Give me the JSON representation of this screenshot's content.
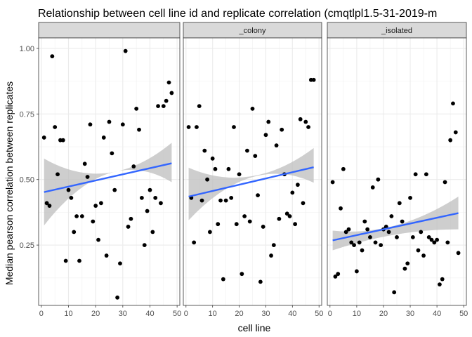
{
  "chart_data": {
    "type": "scatter",
    "title": "Relationship between cell line id and replicate correlation (cmqtlpl1.5-31-2019-m",
    "xlabel": "cell line",
    "ylabel": "Median pearson correlation between replicates",
    "xlim": [
      -1,
      51
    ],
    "ylim": [
      0.02,
      1.04
    ],
    "x_ticks": [
      0,
      10,
      20,
      30,
      40,
      50
    ],
    "y_ticks": [
      0.25,
      0.5,
      0.75,
      1.0
    ],
    "y_tick_labels": [
      "0.25",
      "0.50",
      "0.75",
      "1.00"
    ],
    "x_tick_labels": [
      "0",
      "10",
      "20",
      "30",
      "40",
      "50"
    ],
    "grid": true,
    "panel_background": "#ffffff",
    "strip_fill": "#d9d9d9",
    "point_color": "#000000",
    "fit_color": "#3366ff",
    "band_color": "#bdbdbd",
    "panels": [
      {
        "strip": "",
        "fit": [
          0.452,
          0.562
        ],
        "band_lower": [
          0.325,
          0.522,
          0.49
        ],
        "band_upper": [
          0.58,
          0.525,
          0.64
        ],
        "points": [
          [
            1,
            0.66
          ],
          [
            2,
            0.41
          ],
          [
            3,
            0.4
          ],
          [
            4,
            0.97
          ],
          [
            5,
            0.7
          ],
          [
            6,
            0.52
          ],
          [
            7,
            0.65
          ],
          [
            8,
            0.65
          ],
          [
            9,
            0.19
          ],
          [
            10,
            0.46
          ],
          [
            11,
            0.43
          ],
          [
            12,
            0.3
          ],
          [
            13,
            0.36
          ],
          [
            14,
            0.19
          ],
          [
            15,
            0.36
          ],
          [
            16,
            0.56
          ],
          [
            17,
            0.51
          ],
          [
            18,
            0.71
          ],
          [
            19,
            0.34
          ],
          [
            20,
            0.4
          ],
          [
            21,
            0.27
          ],
          [
            22,
            0.41
          ],
          [
            23,
            0.66
          ],
          [
            24,
            0.21
          ],
          [
            25,
            0.72
          ],
          [
            26,
            0.6
          ],
          [
            27,
            0.46
          ],
          [
            28,
            0.05
          ],
          [
            29,
            0.18
          ],
          [
            30,
            0.71
          ],
          [
            31,
            0.99
          ],
          [
            32,
            0.32
          ],
          [
            33,
            0.35
          ],
          [
            34,
            0.55
          ],
          [
            35,
            0.77
          ],
          [
            36,
            0.69
          ],
          [
            37,
            0.43
          ],
          [
            38,
            0.25
          ],
          [
            39,
            0.38
          ],
          [
            40,
            0.46
          ],
          [
            41,
            0.3
          ],
          [
            42,
            0.43
          ],
          [
            43,
            0.78
          ],
          [
            44,
            0.41
          ],
          [
            45,
            0.78
          ],
          [
            46,
            0.8
          ],
          [
            47,
            0.87
          ],
          [
            48,
            0.83
          ]
        ]
      },
      {
        "strip": "_colony",
        "fit": [
          0.435,
          0.547
        ],
        "band_lower": [
          0.345,
          0.508,
          0.488
        ],
        "band_upper": [
          0.545,
          0.512,
          0.62
        ],
        "points": [
          [
            1,
            0.7
          ],
          [
            2,
            0.43
          ],
          [
            3,
            0.26
          ],
          [
            4,
            0.7
          ],
          [
            5,
            0.78
          ],
          [
            6,
            0.42
          ],
          [
            7,
            0.61
          ],
          [
            8,
            0.5
          ],
          [
            9,
            0.3
          ],
          [
            10,
            0.58
          ],
          [
            11,
            0.54
          ],
          [
            12,
            0.33
          ],
          [
            13,
            0.42
          ],
          [
            14,
            0.12
          ],
          [
            15,
            0.42
          ],
          [
            16,
            0.54
          ],
          [
            17,
            0.43
          ],
          [
            18,
            0.7
          ],
          [
            19,
            0.33
          ],
          [
            20,
            0.52
          ],
          [
            21,
            0.14
          ],
          [
            22,
            0.36
          ],
          [
            23,
            0.61
          ],
          [
            24,
            0.34
          ],
          [
            25,
            0.77
          ],
          [
            26,
            0.59
          ],
          [
            27,
            0.44
          ],
          [
            28,
            0.11
          ],
          [
            29,
            0.32
          ],
          [
            30,
            0.67
          ],
          [
            31,
            0.72
          ],
          [
            32,
            0.21
          ],
          [
            33,
            0.25
          ],
          [
            34,
            0.63
          ],
          [
            35,
            0.35
          ],
          [
            36,
            0.69
          ],
          [
            37,
            0.52
          ],
          [
            38,
            0.37
          ],
          [
            39,
            0.36
          ],
          [
            40,
            0.45
          ],
          [
            41,
            0.33
          ],
          [
            42,
            0.48
          ],
          [
            43,
            0.73
          ],
          [
            44,
            0.41
          ],
          [
            45,
            0.72
          ],
          [
            46,
            0.7
          ],
          [
            47,
            0.88
          ],
          [
            48,
            0.88
          ]
        ]
      },
      {
        "strip": "_isolated",
        "fit": [
          0.268,
          0.372
        ],
        "band_lower": [
          0.23,
          0.29,
          0.31
        ],
        "band_upper": [
          0.305,
          0.325,
          0.435
        ],
        "points": [
          [
            1,
            0.49
          ],
          [
            2,
            0.13
          ],
          [
            3,
            0.14
          ],
          [
            4,
            0.39
          ],
          [
            5,
            0.54
          ],
          [
            6,
            0.3
          ],
          [
            7,
            0.31
          ],
          [
            8,
            0.26
          ],
          [
            9,
            0.25
          ],
          [
            10,
            0.15
          ],
          [
            11,
            0.26
          ],
          [
            12,
            0.23
          ],
          [
            13,
            0.34
          ],
          [
            14,
            0.31
          ],
          [
            15,
            0.28
          ],
          [
            16,
            0.47
          ],
          [
            17,
            0.26
          ],
          [
            18,
            0.5
          ],
          [
            19,
            0.25
          ],
          [
            20,
            0.31
          ],
          [
            21,
            0.32
          ],
          [
            22,
            0.3
          ],
          [
            23,
            0.36
          ],
          [
            24,
            0.07
          ],
          [
            25,
            0.28
          ],
          [
            26,
            0.41
          ],
          [
            27,
            0.34
          ],
          [
            28,
            0.16
          ],
          [
            29,
            0.18
          ],
          [
            30,
            0.43
          ],
          [
            31,
            0.28
          ],
          [
            32,
            0.52
          ],
          [
            33,
            0.23
          ],
          [
            34,
            0.3
          ],
          [
            35,
            0.21
          ],
          [
            36,
            0.52
          ],
          [
            37,
            0.28
          ],
          [
            38,
            0.27
          ],
          [
            39,
            0.26
          ],
          [
            40,
            0.27
          ],
          [
            41,
            0.1
          ],
          [
            42,
            0.12
          ],
          [
            43,
            0.49
          ],
          [
            44,
            0.26
          ],
          [
            45,
            0.65
          ],
          [
            46,
            0.79
          ],
          [
            47,
            0.68
          ],
          [
            48,
            0.22
          ]
        ]
      }
    ]
  }
}
